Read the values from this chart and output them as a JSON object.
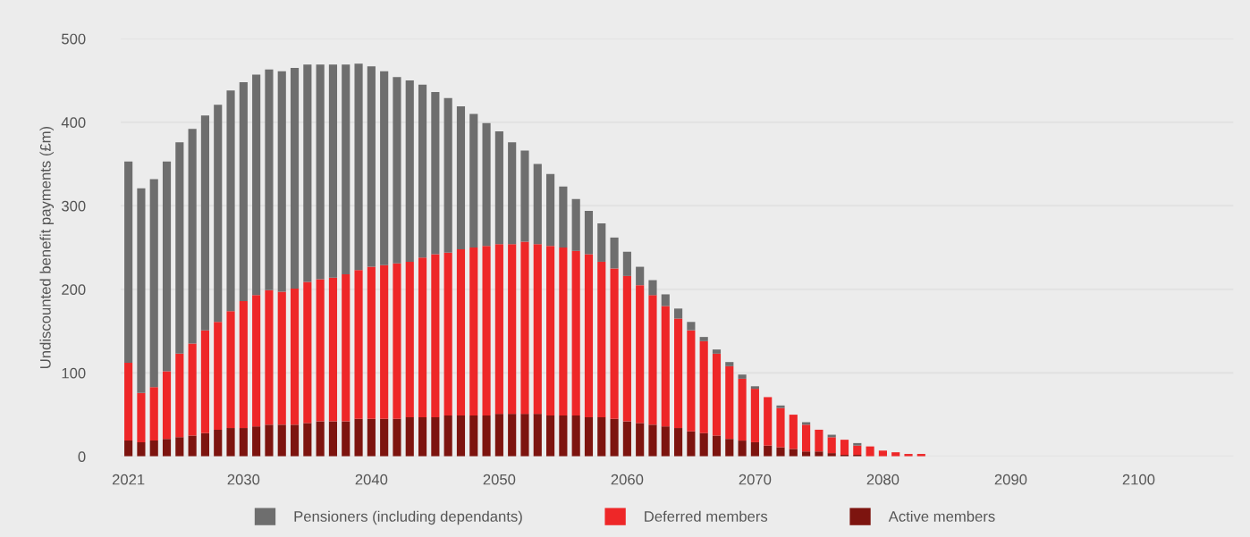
{
  "chart_data": {
    "type": "bar",
    "stacked": true,
    "ylabel": "Undiscounted benefit payments (£m)",
    "x": [
      2021,
      2022,
      2023,
      2024,
      2025,
      2026,
      2027,
      2028,
      2029,
      2030,
      2031,
      2032,
      2033,
      2034,
      2035,
      2036,
      2037,
      2038,
      2039,
      2040,
      2041,
      2042,
      2043,
      2044,
      2045,
      2046,
      2047,
      2048,
      2049,
      2050,
      2051,
      2052,
      2053,
      2054,
      2055,
      2056,
      2057,
      2058,
      2059,
      2060,
      2061,
      2062,
      2063,
      2064,
      2065,
      2066,
      2067,
      2068,
      2069,
      2070,
      2071,
      2072,
      2073,
      2074,
      2075,
      2076,
      2077,
      2078,
      2079,
      2080,
      2081,
      2082,
      2083
    ],
    "series": [
      {
        "name": "Active members",
        "color": "#7d140f",
        "values": [
          19,
          17,
          19,
          21,
          23,
          25,
          28,
          32,
          34,
          34,
          36,
          38,
          38,
          38,
          40,
          42,
          42,
          42,
          45,
          45,
          45,
          45,
          47,
          47,
          47,
          49,
          49,
          49,
          49,
          51,
          51,
          51,
          51,
          49,
          49,
          49,
          47,
          47,
          45,
          42,
          40,
          38,
          36,
          34,
          30,
          28,
          25,
          21,
          19,
          17,
          13,
          11,
          9,
          6,
          6,
          4,
          2,
          2,
          0,
          0,
          0,
          0,
          0
        ]
      },
      {
        "name": "Deferred members",
        "color": "#ee2728",
        "values": [
          93,
          59,
          64,
          81,
          100,
          110,
          123,
          129,
          140,
          152,
          157,
          161,
          159,
          163,
          169,
          170,
          172,
          176,
          178,
          182,
          184,
          186,
          186,
          191,
          195,
          195,
          199,
          201,
          203,
          203,
          203,
          206,
          203,
          203,
          201,
          197,
          195,
          186,
          180,
          174,
          165,
          155,
          144,
          131,
          121,
          110,
          98,
          87,
          74,
          64,
          58,
          47,
          41,
          32,
          26,
          19,
          18,
          11,
          12,
          7,
          5,
          3,
          3
        ]
      },
      {
        "name": "Pensioners (including dependants)",
        "color": "#6e6e6e",
        "values": [
          241,
          245,
          249,
          251,
          253,
          257,
          257,
          260,
          264,
          262,
          264,
          264,
          264,
          264,
          260,
          257,
          255,
          251,
          247,
          240,
          232,
          223,
          217,
          207,
          194,
          185,
          171,
          160,
          147,
          135,
          122,
          109,
          96,
          86,
          73,
          62,
          52,
          46,
          37,
          29,
          22,
          18,
          14,
          12,
          10,
          5,
          5,
          5,
          5,
          3,
          0,
          3,
          0,
          3,
          0,
          3,
          0,
          3,
          0,
          0,
          0,
          0,
          0
        ]
      }
    ],
    "xlim": [
      2020.4,
      2107.4
    ],
    "xticks": [
      2021,
      2030,
      2040,
      2050,
      2060,
      2070,
      2080,
      2090,
      2100
    ],
    "ylim": [
      0,
      500
    ],
    "yticks": [
      0,
      100,
      200,
      300,
      400,
      500
    ],
    "grid": "y",
    "legend": "bottom"
  }
}
